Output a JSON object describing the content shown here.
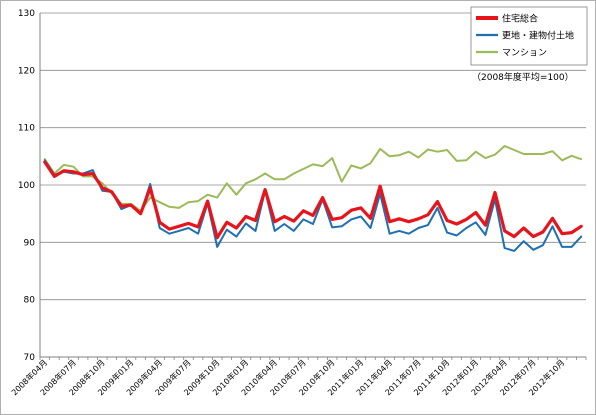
{
  "chart_data": {
    "type": "line",
    "title": "",
    "xlabel": "",
    "ylabel": "",
    "ylim": [
      70,
      130
    ],
    "yticks": [
      70,
      80,
      90,
      100,
      110,
      120,
      130
    ],
    "grid": "horizontal",
    "legend_position": "top-right",
    "note": "（2008年度平均=100）",
    "x_tick_labels": [
      "2008年04月",
      "2008年07月",
      "2008年10月",
      "2009年01月",
      "2009年04月",
      "2009年07月",
      "2009年10月",
      "2010年01月",
      "2010年04月",
      "2010年07月",
      "2010年10月",
      "2011年01月",
      "2011年04月",
      "2011年07月",
      "2011年10月",
      "2012年01月",
      "2012年04月",
      "2012年07月",
      "2012年10月"
    ],
    "x": [
      "2008-04",
      "2008-05",
      "2008-06",
      "2008-07",
      "2008-08",
      "2008-09",
      "2008-10",
      "2008-11",
      "2008-12",
      "2009-01",
      "2009-02",
      "2009-03",
      "2009-04",
      "2009-05",
      "2009-06",
      "2009-07",
      "2009-08",
      "2009-09",
      "2009-10",
      "2009-11",
      "2009-12",
      "2010-01",
      "2010-02",
      "2010-03",
      "2010-04",
      "2010-05",
      "2010-06",
      "2010-07",
      "2010-08",
      "2010-09",
      "2010-10",
      "2010-11",
      "2010-12",
      "2011-01",
      "2011-02",
      "2011-03",
      "2011-04",
      "2011-05",
      "2011-06",
      "2011-07",
      "2011-08",
      "2011-09",
      "2011-10",
      "2011-11",
      "2011-12",
      "2012-01",
      "2012-02",
      "2012-03",
      "2012-04",
      "2012-05",
      "2012-06",
      "2012-07",
      "2012-08",
      "2012-09",
      "2012-10",
      "2012-11",
      "2012-12"
    ],
    "series": [
      {
        "name": "住宅総合",
        "color": "#e8141c",
        "values": [
          104.0,
          101.5,
          102.5,
          102.3,
          101.8,
          102.0,
          99.5,
          98.8,
          96.3,
          96.5,
          95.0,
          99.5,
          93.5,
          92.3,
          92.8,
          93.3,
          92.7,
          97.2,
          90.8,
          93.5,
          92.5,
          94.5,
          93.8,
          99.2,
          93.6,
          94.5,
          93.7,
          95.5,
          94.7,
          97.8,
          94.0,
          94.3,
          95.6,
          96.0,
          94.2,
          99.8,
          93.6,
          94.1,
          93.6,
          94.1,
          94.8,
          97.1,
          93.8,
          93.2,
          94.0,
          95.2,
          93.0,
          98.7,
          92.0,
          91.0,
          92.5,
          91.0,
          91.8,
          94.2,
          91.5,
          91.7,
          92.8
        ]
      },
      {
        "name": "更地・建物付土地",
        "color": "#1f6fb4",
        "values": [
          104.3,
          101.8,
          102.3,
          102.0,
          102.0,
          102.6,
          99.0,
          98.8,
          95.8,
          96.5,
          95.0,
          100.2,
          92.5,
          91.5,
          92.0,
          92.5,
          91.5,
          96.8,
          89.2,
          92.2,
          91.0,
          93.3,
          92.0,
          99.0,
          92.0,
          93.2,
          92.0,
          94.0,
          93.2,
          97.5,
          92.6,
          92.8,
          94.0,
          94.5,
          92.5,
          98.5,
          91.5,
          92.0,
          91.5,
          92.5,
          93.0,
          96.0,
          91.7,
          91.2,
          92.5,
          93.5,
          91.3,
          97.5,
          89.0,
          88.5,
          90.2,
          88.7,
          89.5,
          92.8,
          89.2,
          89.2,
          91.0
        ]
      },
      {
        "name": "マンション",
        "color": "#9bbb59",
        "values": [
          104.5,
          102.0,
          103.5,
          103.2,
          101.5,
          101.5,
          100.3,
          98.5,
          96.7,
          96.7,
          95.5,
          97.8,
          97.0,
          96.2,
          96.0,
          97.0,
          97.2,
          98.3,
          97.8,
          100.3,
          98.3,
          100.3,
          101.0,
          102.0,
          101.0,
          101.0,
          102.0,
          102.8,
          103.6,
          103.3,
          104.7,
          100.6,
          103.4,
          102.9,
          103.8,
          106.3,
          105.0,
          105.2,
          105.8,
          104.8,
          106.2,
          105.8,
          106.1,
          104.2,
          104.3,
          105.8,
          104.7,
          105.3,
          106.8,
          106.1,
          105.4,
          105.4,
          105.4,
          105.9,
          104.3,
          105.1,
          104.5
        ]
      }
    ]
  }
}
